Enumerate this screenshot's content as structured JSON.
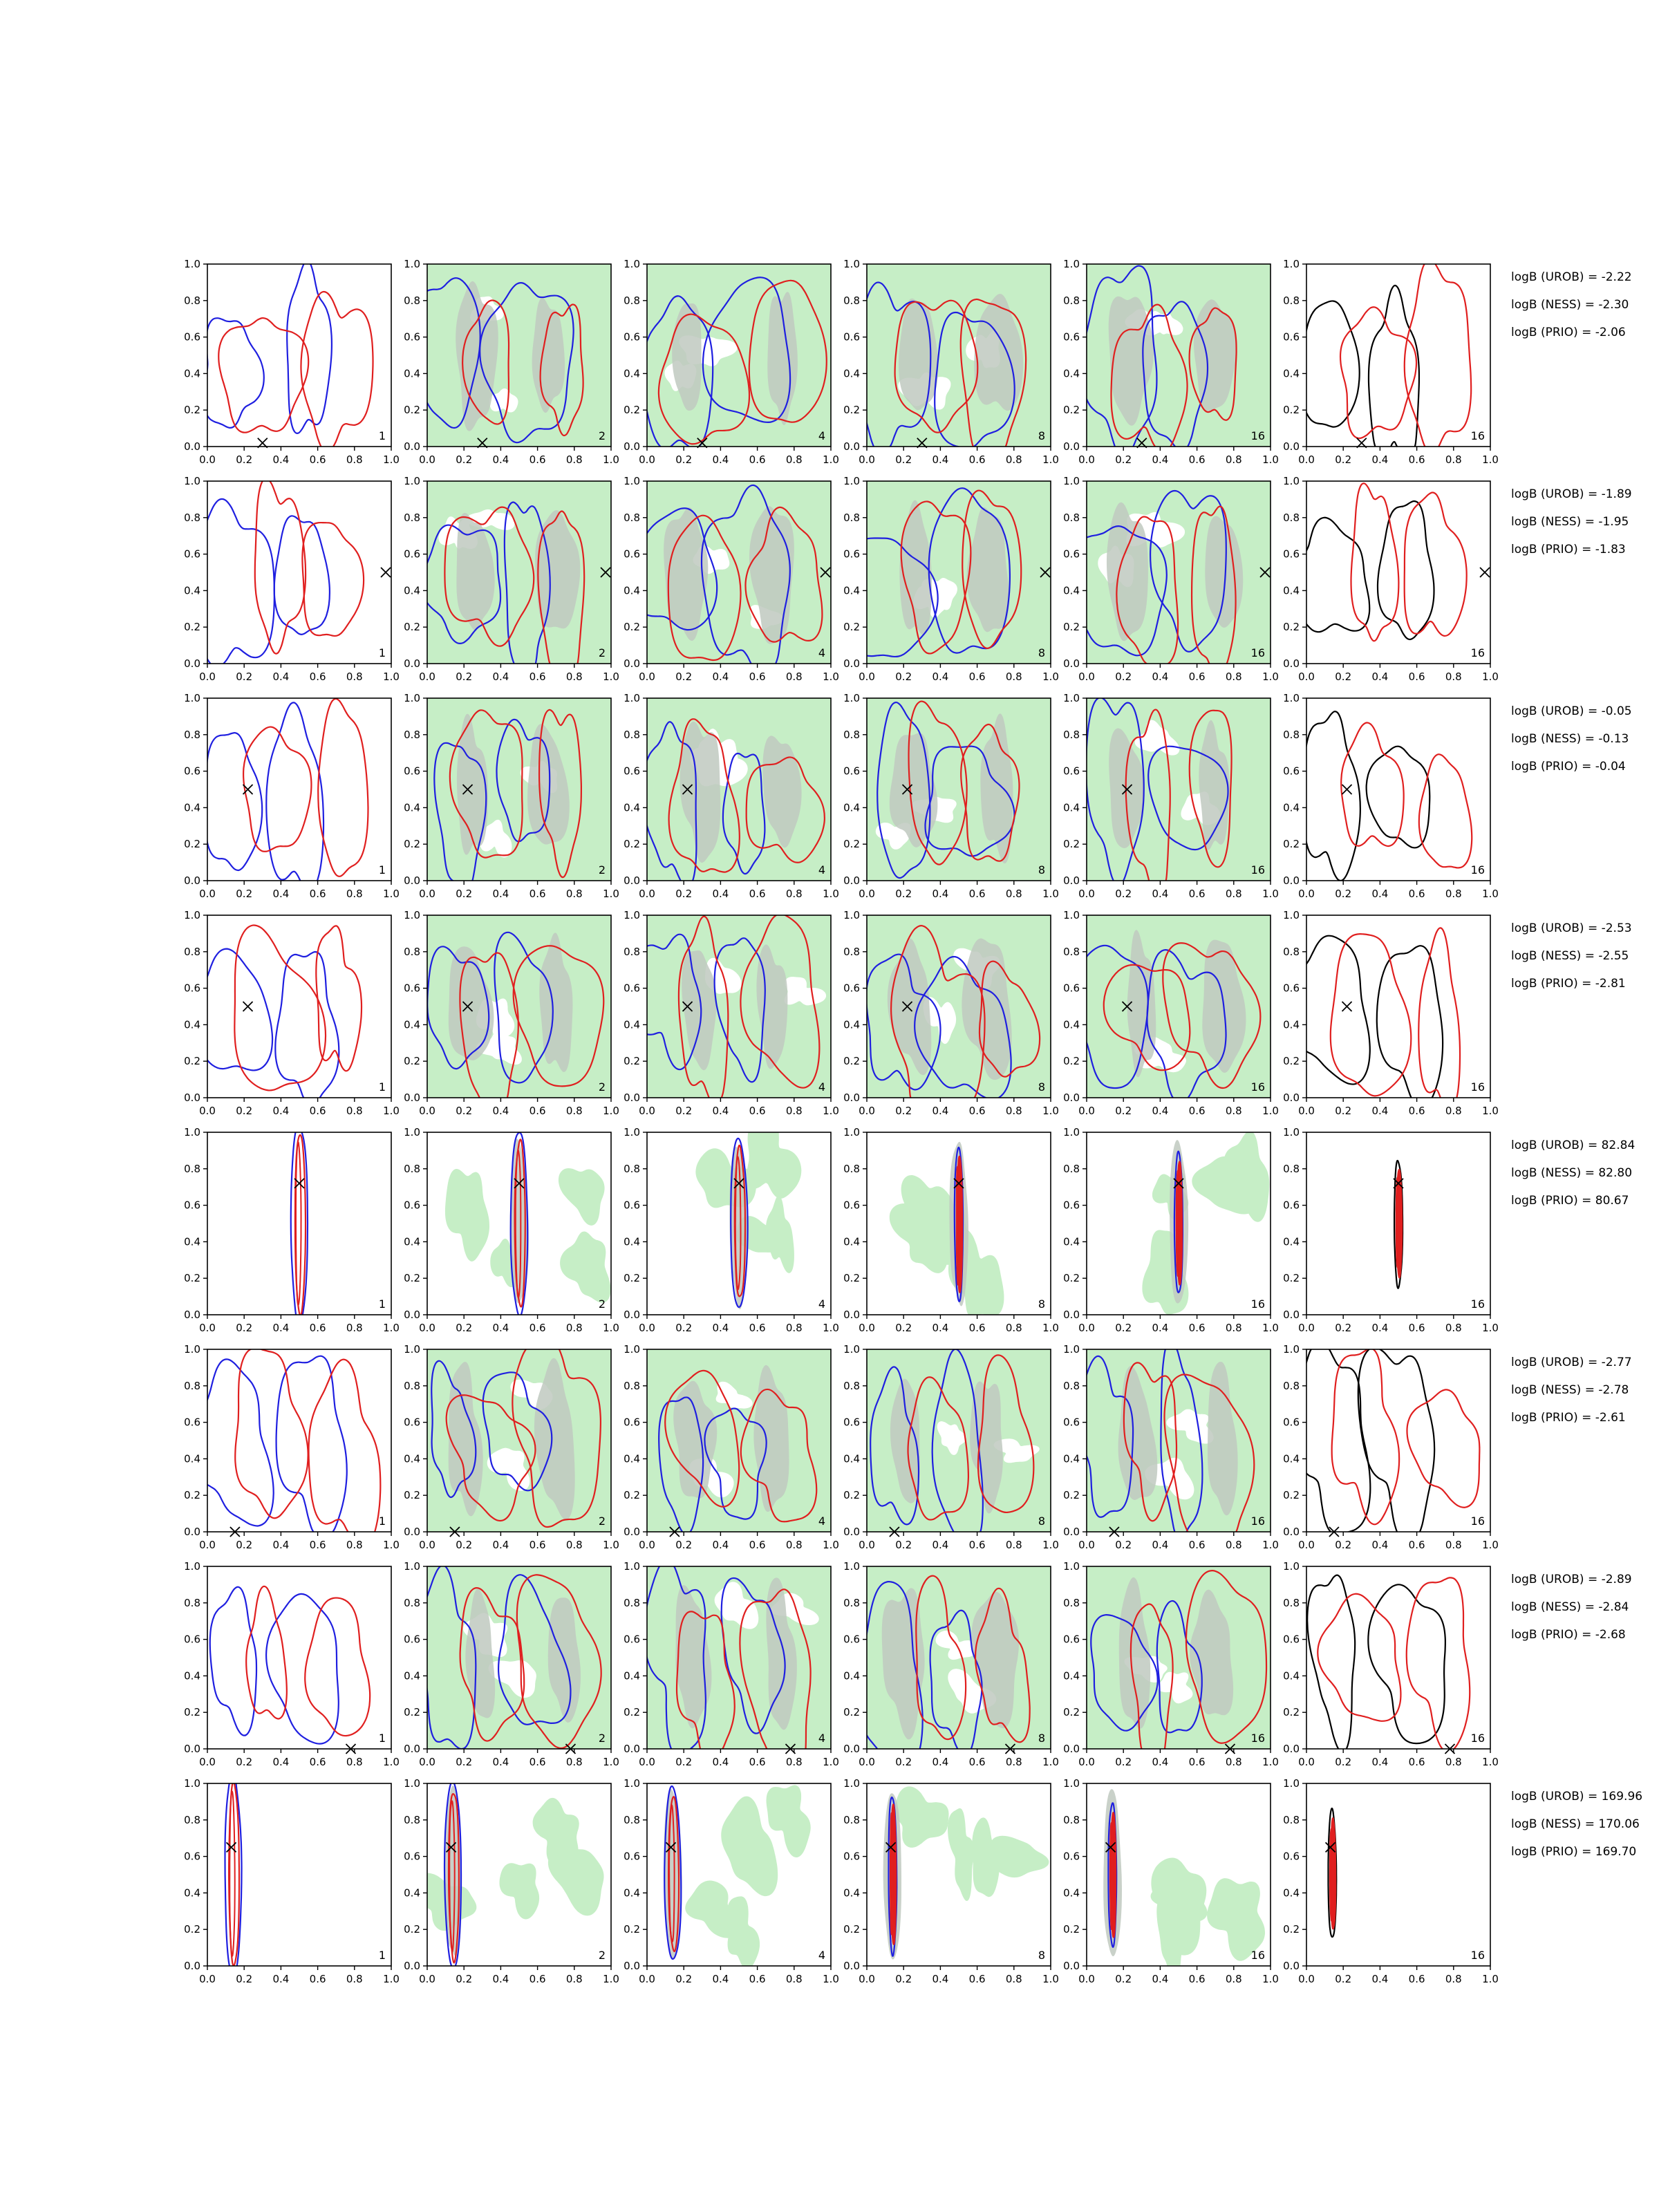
{
  "chart_data": {
    "type": "contour-grid",
    "rows": 8,
    "columns": 6,
    "xlim": [
      0.0,
      1.0
    ],
    "ylim": [
      0.0,
      1.0
    ],
    "x_ticks": [
      "0.0",
      "0.2",
      "0.4",
      "0.6",
      "0.8",
      "1.0"
    ],
    "y_ticks": [
      "0.0",
      "0.2",
      "0.4",
      "0.6",
      "0.8",
      "1.0"
    ],
    "panel_numbers": [
      "1",
      "2",
      "4",
      "8",
      "16",
      "16"
    ],
    "colors": {
      "contour_a": "#1f1fe0",
      "contour_b": "#e01f1f",
      "contour_final": "#000000",
      "fill_light": "#c6eec6",
      "fill_dark": "#bfc9bf"
    },
    "rows_data": [
      {
        "marker": [
          0.3,
          0.02
        ],
        "logB": [
          "logB (UROB) = -2.22",
          "logB (NESS) = -2.30",
          "logB (PRIO) = -2.06"
        ],
        "blob": null
      },
      {
        "marker": [
          0.97,
          0.5
        ],
        "logB": [
          "logB (UROB) = -1.89",
          "logB (NESS) = -1.95",
          "logB (PRIO) = -1.83"
        ],
        "blob": null
      },
      {
        "marker": [
          0.22,
          0.5
        ],
        "logB": [
          "logB (UROB) = -0.05",
          "logB (NESS) = -0.13",
          "logB (PRIO) = -0.04"
        ],
        "blob": null
      },
      {
        "marker": [
          0.22,
          0.5
        ],
        "logB": [
          "logB (UROB) = -2.53",
          "logB (NESS) = -2.55",
          "logB (PRIO) = -2.81"
        ],
        "blob": null
      },
      {
        "marker": [
          0.5,
          0.72
        ],
        "logB": [
          "logB (UROB) = 82.84",
          "logB (NESS) = 82.80",
          "logB (PRIO) = 80.67"
        ],
        "blob": [
          0.5,
          0.5
        ]
      },
      {
        "marker": [
          0.15,
          0.0
        ],
        "logB": [
          "logB (UROB) = -2.77",
          "logB (NESS) = -2.78",
          "logB (PRIO) = -2.61"
        ],
        "blob": null
      },
      {
        "marker": [
          0.78,
          0.0
        ],
        "logB": [
          "logB (UROB) = -2.89",
          "logB (NESS) = -2.84",
          "logB (PRIO) = -2.68"
        ],
        "blob": null
      },
      {
        "marker": [
          0.13,
          0.65
        ],
        "logB": [
          "logB (UROB) = 169.96",
          "logB (NESS) = 170.06",
          "logB (PRIO) = 169.70"
        ],
        "blob": [
          0.14,
          0.5
        ]
      }
    ]
  }
}
